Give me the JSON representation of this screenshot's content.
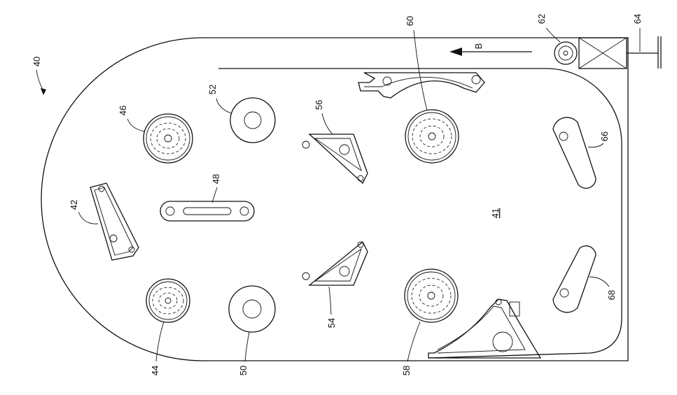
{
  "figure": {
    "labels": {
      "board": "40",
      "playfield": "41",
      "lower_flipper_left": "42",
      "bumper_lower_left": "44",
      "bumper_upper_left": "46",
      "slot_target": "48",
      "post_lower": "50",
      "post_upper": "52",
      "slingshot_lower": "54",
      "slingshot_upper": "56",
      "bumper_lower_right": "58",
      "bumper_upper_right": "60",
      "plunger_roller": "62",
      "plunger": "64",
      "flipper_upper": "66",
      "flipper_lower": "68"
    },
    "direction_label": "B"
  }
}
